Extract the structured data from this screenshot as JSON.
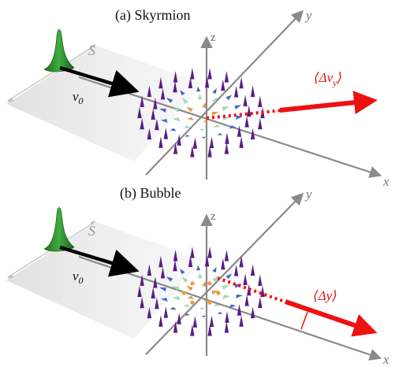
{
  "panel_a": {
    "title": "(a) Skyrmion",
    "velocity_label": "v",
    "velocity_sub": "0",
    "sheet_label": "S",
    "axis_x": "x",
    "axis_y": "y",
    "axis_z": "z",
    "shift_label": "⟨Δv",
    "shift_sub": "y",
    "shift_close": "⟩"
  },
  "panel_b": {
    "title": "(b) Bubble",
    "velocity_label": "v",
    "velocity_sub": "0",
    "sheet_label": "S",
    "axis_x": "x",
    "axis_y": "y",
    "axis_z": "z",
    "shift_label": "⟨Δy⟩"
  },
  "colors": {
    "sheet": "#d9d9d9",
    "axis": "#8a8a8a",
    "wavepacket": "#2e8b2e",
    "velocity_arrow": "#000000",
    "shift_arrow": "#ee1111",
    "spin_outer": "#5b1a8c",
    "spin_mid": "#3c66d6",
    "spin_inner": "#9fe0b4",
    "spin_core": "#f09a3a"
  }
}
